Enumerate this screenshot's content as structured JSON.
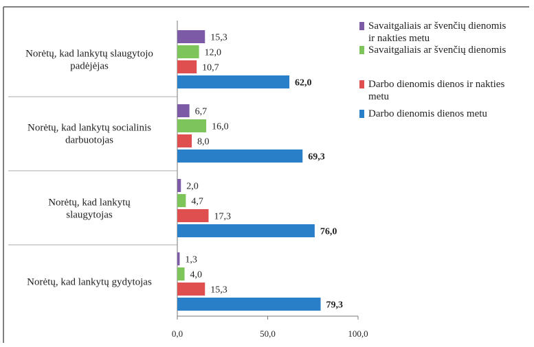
{
  "chart_data": {
    "type": "bar",
    "orientation": "horizontal",
    "categories": [
      [
        "Norėtų, kad lankytų slaugytojo",
        "padėjėjas"
      ],
      [
        "Norėtų, kad lankytų socialinis",
        "darbuotojas"
      ],
      [
        "Norėtų, kad lankytų",
        "slaugytojas"
      ],
      [
        "Norėtų, kad lankytų gydytojas"
      ]
    ],
    "series": [
      {
        "name": [
          "Savaitgaliais ar švenčių dienomis",
          "ir nakties metu"
        ],
        "color": "#7c5aa6",
        "values": [
          15.3,
          6.7,
          2.0,
          1.3
        ],
        "labels": [
          "15,3",
          "6,7",
          "2,0",
          "1,3"
        ],
        "bold": false
      },
      {
        "name": [
          "Savaitgaliais ar švenčių dienomis"
        ],
        "color": "#7dc45a",
        "values": [
          12.0,
          16.0,
          4.7,
          4.0
        ],
        "labels": [
          "12,0",
          "16,0",
          "4,7",
          "4,0"
        ],
        "bold": false
      },
      {
        "name": [
          "Darbo dienomis dienos ir nakties",
          "metu"
        ],
        "color": "#e04f4f",
        "values": [
          10.7,
          8.0,
          17.3,
          15.3
        ],
        "labels": [
          "10,7",
          "8,0",
          "17,3",
          "15,3"
        ],
        "bold": false
      },
      {
        "name": [
          "Darbo dienomis dienos metu"
        ],
        "color": "#2a7fc9",
        "values": [
          62.0,
          69.3,
          76.0,
          79.3
        ],
        "labels": [
          "62,0",
          "69,3",
          "76,0",
          "79,3"
        ],
        "bold": true
      }
    ],
    "xlim": [
      0,
      100
    ],
    "xticks": [
      0,
      50,
      100
    ],
    "xtick_labels": [
      "0,0",
      "50,0",
      "100,0"
    ],
    "grid": false,
    "legend_position": "right"
  }
}
